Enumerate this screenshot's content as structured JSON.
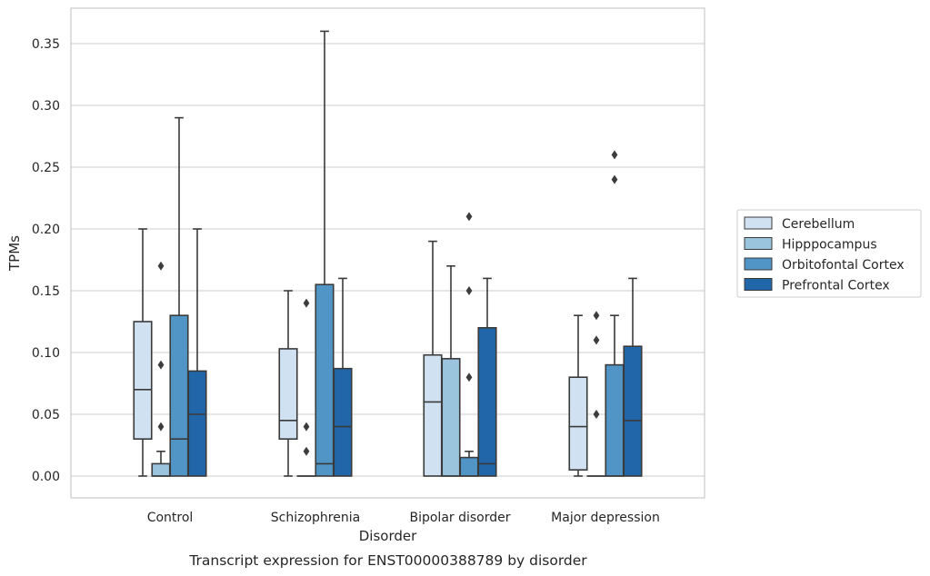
{
  "chart_data": {
    "type": "box",
    "caption": "Transcript expression for ENST00000388789 by disorder",
    "xlabel": "Disorder",
    "ylabel": "TPMs",
    "ylim": [
      -0.017,
      0.38
    ],
    "yticks": [
      "0.00",
      "0.05",
      "0.10",
      "0.15",
      "0.20",
      "0.25",
      "0.30",
      "0.35"
    ],
    "grid": "horizontal",
    "legend_position": "right",
    "categories": [
      "Control",
      "Schizophrenia",
      "Bipolar disorder",
      "Major depression"
    ],
    "series": [
      {
        "name": "Cerebellum",
        "color": "#d0e1f2",
        "boxes": [
          {
            "whisker_low": 0.0,
            "q1": 0.03,
            "median": 0.07,
            "q3": 0.125,
            "whisker_high": 0.2,
            "outliers": []
          },
          {
            "whisker_low": 0.0,
            "q1": 0.03,
            "median": 0.045,
            "q3": 0.103,
            "whisker_high": 0.15,
            "outliers": []
          },
          {
            "whisker_low": 0.0,
            "q1": 0.0,
            "median": 0.06,
            "q3": 0.098,
            "whisker_high": 0.19,
            "outliers": []
          },
          {
            "whisker_low": 0.0,
            "q1": 0.005,
            "median": 0.04,
            "q3": 0.08,
            "whisker_high": 0.13,
            "outliers": []
          }
        ]
      },
      {
        "name": "Hipppocampus",
        "color": "#9ac4dd",
        "boxes": [
          {
            "whisker_low": 0.0,
            "q1": 0.0,
            "median": 0.0,
            "q3": 0.01,
            "whisker_high": 0.02,
            "outliers": [
              0.04,
              0.09,
              0.17
            ]
          },
          {
            "whisker_low": 0.0,
            "q1": 0.0,
            "median": 0.0,
            "q3": 0.0,
            "whisker_high": 0.0,
            "outliers": [
              0.02,
              0.04,
              0.14
            ]
          },
          {
            "whisker_low": 0.0,
            "q1": 0.0,
            "median": 0.0,
            "q3": 0.095,
            "whisker_high": 0.17,
            "outliers": []
          },
          {
            "whisker_low": 0.0,
            "q1": 0.0,
            "median": 0.0,
            "q3": 0.0,
            "whisker_high": 0.0,
            "outliers": [
              0.05,
              0.11,
              0.13
            ]
          }
        ]
      },
      {
        "name": "Orbitofontal Cortex",
        "color": "#5095c6",
        "boxes": [
          {
            "whisker_low": 0.0,
            "q1": 0.0,
            "median": 0.03,
            "q3": 0.13,
            "whisker_high": 0.29,
            "outliers": []
          },
          {
            "whisker_low": 0.0,
            "q1": 0.0,
            "median": 0.01,
            "q3": 0.155,
            "whisker_high": 0.36,
            "outliers": []
          },
          {
            "whisker_low": 0.0,
            "q1": 0.0,
            "median": 0.0,
            "q3": 0.015,
            "whisker_high": 0.02,
            "outliers": [
              0.08,
              0.15,
              0.21
            ]
          },
          {
            "whisker_low": 0.0,
            "q1": 0.0,
            "median": 0.0,
            "q3": 0.09,
            "whisker_high": 0.13,
            "outliers": [
              0.24,
              0.26
            ]
          }
        ]
      },
      {
        "name": "Prefrontal Cortex",
        "color": "#2166a8",
        "boxes": [
          {
            "whisker_low": 0.0,
            "q1": 0.0,
            "median": 0.05,
            "q3": 0.085,
            "whisker_high": 0.2,
            "outliers": []
          },
          {
            "whisker_low": 0.0,
            "q1": 0.0,
            "median": 0.04,
            "q3": 0.087,
            "whisker_high": 0.16,
            "outliers": []
          },
          {
            "whisker_low": 0.0,
            "q1": 0.0,
            "median": 0.01,
            "q3": 0.12,
            "whisker_high": 0.16,
            "outliers": []
          },
          {
            "whisker_low": 0.0,
            "q1": 0.0,
            "median": 0.045,
            "q3": 0.105,
            "whisker_high": 0.16,
            "outliers": []
          }
        ]
      }
    ]
  }
}
